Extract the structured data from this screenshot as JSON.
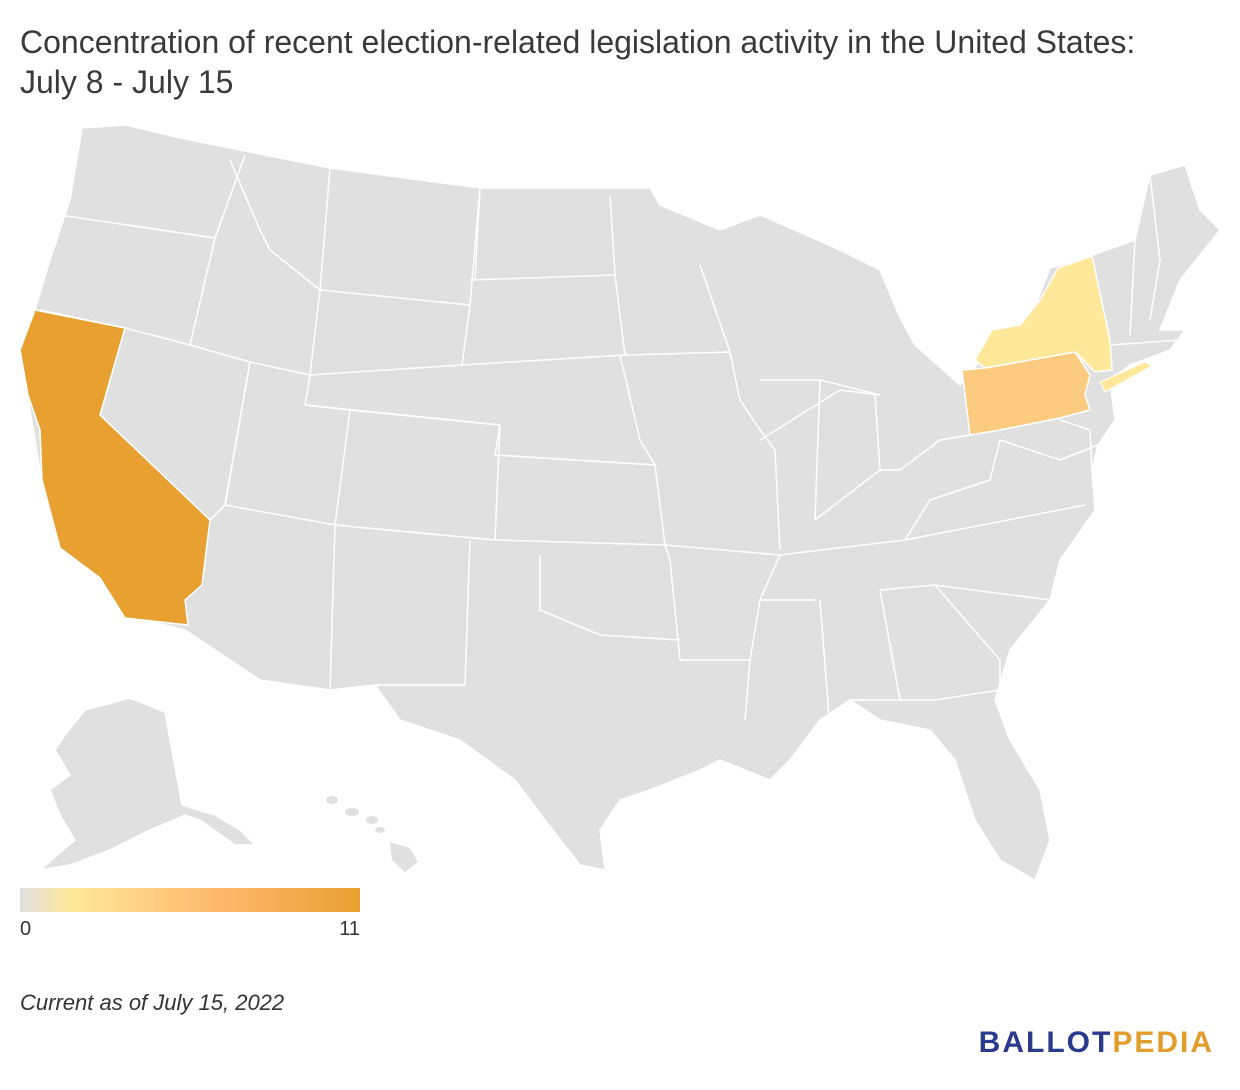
{
  "title": "Concentration of recent election-related legislation activity in the United States: July 8 - July 15",
  "colors": {
    "none": "#e0e0e0",
    "low": "#ffe89a",
    "mid": "#fdcb80",
    "high": "#e8a030",
    "border": "#ffffff",
    "brand_primary": "#2b3a8c",
    "brand_accent": "#e39d2c"
  },
  "legend": {
    "min_label": "0",
    "max_label": "11",
    "stops": [
      "#e0e0e0",
      "#ffe89a",
      "#fdb66b",
      "#e8a030"
    ]
  },
  "highlighted_states": [
    {
      "state": "California",
      "level": "high"
    },
    {
      "state": "Pennsylvania",
      "level": "mid"
    },
    {
      "state": "New York",
      "level": "low"
    }
  ],
  "footnote": "Current as of July 15, 2022",
  "brand": {
    "part1": "BALLOT",
    "part2": "PEDIA"
  }
}
